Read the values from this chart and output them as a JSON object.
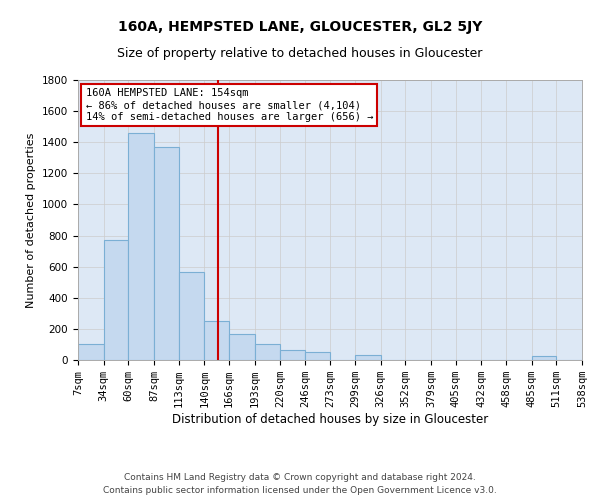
{
  "title": "160A, HEMPSTED LANE, GLOUCESTER, GL2 5JY",
  "subtitle": "Size of property relative to detached houses in Gloucester",
  "xlabel": "Distribution of detached houses by size in Gloucester",
  "ylabel": "Number of detached properties",
  "footer_line1": "Contains HM Land Registry data © Crown copyright and database right 2024.",
  "footer_line2": "Contains public sector information licensed under the Open Government Licence v3.0.",
  "annotation_line1": "160A HEMPSTED LANE: 154sqm",
  "annotation_line2": "← 86% of detached houses are smaller (4,104)",
  "annotation_line3": "14% of semi-detached houses are larger (656) →",
  "bin_edges": [
    7,
    34,
    60,
    87,
    113,
    140,
    166,
    193,
    220,
    246,
    273,
    299,
    326,
    352,
    379,
    405,
    432,
    458,
    485,
    511,
    538
  ],
  "bin_counts": [
    105,
    770,
    1460,
    1370,
    565,
    250,
    165,
    100,
    65,
    50,
    0,
    30,
    0,
    0,
    0,
    0,
    0,
    0,
    25,
    0
  ],
  "bar_color": "#c5d9ef",
  "bar_edge_color": "#7bafd4",
  "bar_linewidth": 0.8,
  "vline_color": "#cc0000",
  "vline_x": 154,
  "ylim": [
    0,
    1800
  ],
  "yticks": [
    0,
    200,
    400,
    600,
    800,
    1000,
    1200,
    1400,
    1600,
    1800
  ],
  "grid_color": "#cccccc",
  "background_color": "#dde8f5",
  "annotation_box_color": "#ffffff",
  "annotation_box_edge": "#cc0000",
  "title_fontsize": 10,
  "subtitle_fontsize": 9,
  "xlabel_fontsize": 8.5,
  "ylabel_fontsize": 8,
  "tick_fontsize": 7.5,
  "annotation_fontsize": 7.5,
  "footer_fontsize": 6.5
}
